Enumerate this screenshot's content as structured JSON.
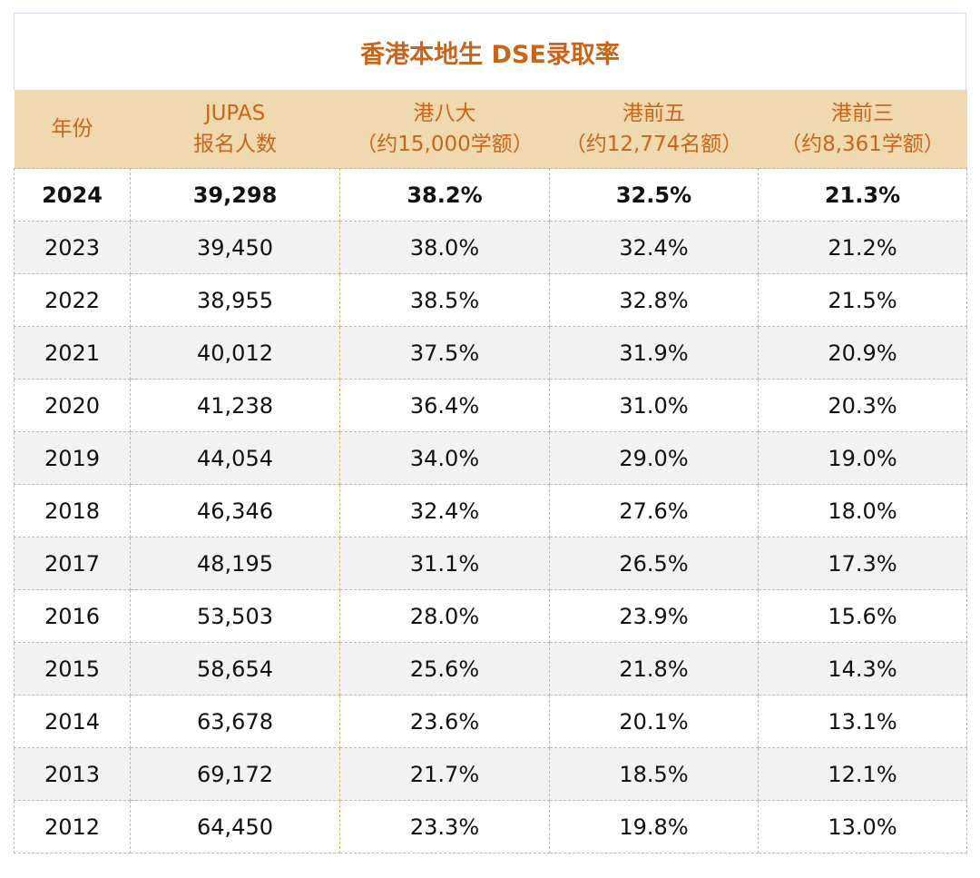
{
  "title": "香港本地生 DSE录取率",
  "headers": [
    {
      "line1": "年份",
      "line2": ""
    },
    {
      "line1": "JUPAS",
      "line2": "报名人数"
    },
    {
      "line1": "港八大",
      "line2": "（约15,000学额）"
    },
    {
      "line1": "港前五",
      "line2": "（约12,774名额）"
    },
    {
      "line1": "港前三",
      "line2": "（约8,361学额）"
    }
  ],
  "rows": [
    [
      "2024",
      "39,298",
      "38.2%",
      "32.5%",
      "21.3%"
    ],
    [
      "2023",
      "39,450",
      "38.0%",
      "32.4%",
      "21.2%"
    ],
    [
      "2022",
      "38,955",
      "38.5%",
      "32.8%",
      "21.5%"
    ],
    [
      "2021",
      "40,012",
      "37.5%",
      "31.9%",
      "20.9%"
    ],
    [
      "2020",
      "41,238",
      "36.4%",
      "31.0%",
      "20.3%"
    ],
    [
      "2019",
      "44,054",
      "34.0%",
      "29.0%",
      "19.0%"
    ],
    [
      "2018",
      "46,346",
      "32.4%",
      "27.6%",
      "18.0%"
    ],
    [
      "2017",
      "48,195",
      "31.1%",
      "26.5%",
      "17.3%"
    ],
    [
      "2016",
      "53,503",
      "28.0%",
      "23.9%",
      "15.6%"
    ],
    [
      "2015",
      "58,654",
      "25.6%",
      "21.8%",
      "14.3%"
    ],
    [
      "2014",
      "63,678",
      "23.6%",
      "20.1%",
      "13.1%"
    ],
    [
      "2013",
      "69,172",
      "21.7%",
      "18.5%",
      "12.1%"
    ],
    [
      "2012",
      "64,450",
      "23.3%",
      "19.8%",
      "13.0%"
    ]
  ],
  "colors": {
    "accent": "#c8651c",
    "header_bg": "#f0d9ae",
    "border": "#e8b45a",
    "alt_row": "#f2f2f2"
  }
}
